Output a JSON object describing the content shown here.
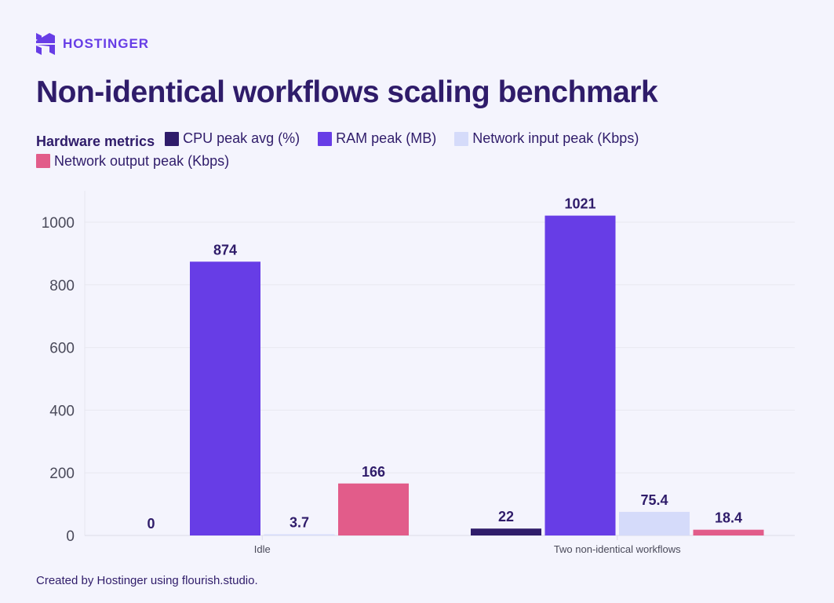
{
  "brand": {
    "name": "HOSTINGER",
    "color": "#673de6"
  },
  "footer": "Created by Hostinger using flourish.studio.",
  "chart_data": {
    "type": "bar",
    "title": "Non-identical workflows scaling benchmark",
    "legend_title": "Hardware metrics",
    "legend_position": "top-left",
    "categories": [
      "Idle",
      "Two non-identical workflows"
    ],
    "series": [
      {
        "name": "CPU peak avg (%)",
        "color": "#2f1c6a",
        "values": [
          0,
          22
        ],
        "labels": [
          "0",
          "22"
        ]
      },
      {
        "name": "RAM peak (MB)",
        "color": "#673de6",
        "values": [
          874,
          1021
        ],
        "labels": [
          "874",
          "1021"
        ]
      },
      {
        "name": "Network input peak (Kbps)",
        "color": "#d5dbfa",
        "values": [
          3.7,
          75.4
        ],
        "labels": [
          "3.7",
          "75.4"
        ]
      },
      {
        "name": "Network output peak (Kbps)",
        "color": "#e25c8a",
        "values": [
          166,
          18.4
        ],
        "labels": [
          "166",
          "18.4"
        ]
      }
    ],
    "yticks": [
      0,
      200,
      400,
      600,
      800,
      1000
    ],
    "ylim": [
      0,
      1100
    ],
    "grid": true
  }
}
